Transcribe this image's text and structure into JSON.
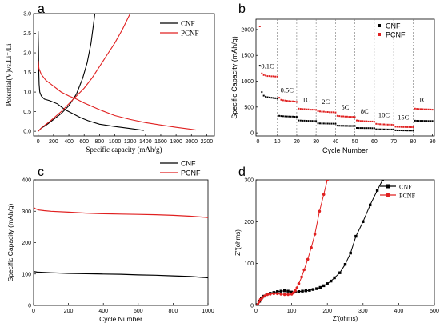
{
  "chart_data": [
    {
      "id": "a",
      "panel_label": "a",
      "type": "line",
      "xlabel": "Specific capacity  (mAh/g)",
      "ylabel": "Potential(V)vs.Li⁺/Li",
      "xlim": [
        -60,
        2300
      ],
      "ylim": [
        -0.12,
        3.0
      ],
      "xticks": [
        0,
        200,
        400,
        600,
        800,
        1000,
        1200,
        1400,
        1600,
        1800,
        2000,
        2200
      ],
      "yticks": [
        0.0,
        0.5,
        1.0,
        1.5,
        2.0,
        2.5,
        3.0
      ],
      "legend": [
        {
          "name": "CNF",
          "color": "#000000"
        },
        {
          "name": "PCNF",
          "color": "#e02020"
        }
      ],
      "series": [
        {
          "name": "CNF",
          "color": "#000000",
          "segment": "discharge",
          "points": [
            [
              0,
              2.55
            ],
            [
              5,
              2.0
            ],
            [
              8,
              1.5
            ],
            [
              12,
              1.2
            ],
            [
              20,
              1.0
            ],
            [
              40,
              0.9
            ],
            [
              80,
              0.82
            ],
            [
              150,
              0.78
            ],
            [
              250,
              0.7
            ],
            [
              350,
              0.55
            ],
            [
              450,
              0.45
            ],
            [
              550,
              0.35
            ],
            [
              650,
              0.27
            ],
            [
              800,
              0.18
            ],
            [
              1000,
              0.12
            ],
            [
              1200,
              0.07
            ],
            [
              1380,
              0.02
            ]
          ]
        },
        {
          "name": "CNF",
          "color": "#000000",
          "segment": "charge",
          "points": [
            [
              0,
              0.0
            ],
            [
              40,
              0.08
            ],
            [
              100,
              0.15
            ],
            [
              200,
              0.3
            ],
            [
              300,
              0.45
            ],
            [
              400,
              0.65
            ],
            [
              500,
              0.95
            ],
            [
              580,
              1.35
            ],
            [
              640,
              1.75
            ],
            [
              690,
              2.25
            ],
            [
              720,
              2.7
            ],
            [
              740,
              3.0
            ]
          ]
        },
        {
          "name": "PCNF",
          "color": "#e02020",
          "segment": "discharge",
          "points": [
            [
              0,
              1.8
            ],
            [
              10,
              1.6
            ],
            [
              40,
              1.45
            ],
            [
              100,
              1.3
            ],
            [
              200,
              1.15
            ],
            [
              300,
              1.0
            ],
            [
              400,
              0.9
            ],
            [
              500,
              0.82
            ],
            [
              600,
              0.72
            ],
            [
              800,
              0.55
            ],
            [
              1000,
              0.4
            ],
            [
              1200,
              0.3
            ],
            [
              1400,
              0.22
            ],
            [
              1600,
              0.16
            ],
            [
              1800,
              0.1
            ],
            [
              2000,
              0.05
            ],
            [
              2060,
              0.03
            ]
          ]
        },
        {
          "name": "PCNF",
          "color": "#e02020",
          "segment": "charge",
          "points": [
            [
              0,
              0.0
            ],
            [
              50,
              0.1
            ],
            [
              150,
              0.25
            ],
            [
              300,
              0.5
            ],
            [
              450,
              0.8
            ],
            [
              600,
              1.1
            ],
            [
              700,
              1.35
            ],
            [
              800,
              1.65
            ],
            [
              900,
              1.95
            ],
            [
              1000,
              2.25
            ],
            [
              1100,
              2.6
            ],
            [
              1200,
              3.0
            ]
          ]
        }
      ]
    },
    {
      "id": "b",
      "panel_label": "b",
      "type": "scatter",
      "xlabel": "Cycle Number",
      "ylabel": "Specific Capacity  (mAh/g)",
      "xlim": [
        -1,
        91
      ],
      "ylim": [
        -60,
        2200
      ],
      "xticks": [
        0,
        10,
        20,
        30,
        40,
        50,
        60,
        70,
        80,
        90
      ],
      "yticks": [
        0,
        500,
        1000,
        1500,
        2000
      ],
      "legend": [
        {
          "name": "CNF",
          "color": "#000000"
        },
        {
          "name": "PCNF",
          "color": "#e02020"
        }
      ],
      "rate_labels": [
        {
          "text": "0.1C",
          "x": 5,
          "y": 1250
        },
        {
          "text": "0.5C",
          "x": 15,
          "y": 780
        },
        {
          "text": "1C",
          "x": 25,
          "y": 600
        },
        {
          "text": "2C",
          "x": 35,
          "y": 560
        },
        {
          "text": "5C",
          "x": 45,
          "y": 450
        },
        {
          "text": "8C",
          "x": 55,
          "y": 370
        },
        {
          "text": "10C",
          "x": 65,
          "y": 300
        },
        {
          "text": "15C",
          "x": 75,
          "y": 260
        },
        {
          "text": "1C",
          "x": 85,
          "y": 600
        }
      ],
      "separators": [
        10,
        20,
        30,
        40,
        50,
        60,
        70,
        80
      ],
      "series": [
        {
          "name": "PCNF",
          "color": "#e02020",
          "values": [
            2060,
            1150,
            1120,
            1110,
            1100,
            1100,
            1095,
            1095,
            1090,
            1090,
            680,
            640,
            630,
            625,
            620,
            615,
            610,
            610,
            605,
            600,
            470,
            465,
            460,
            460,
            455,
            455,
            450,
            450,
            450,
            445,
            420,
            415,
            410,
            410,
            405,
            405,
            400,
            400,
            400,
            395,
            330,
            325,
            320,
            320,
            315,
            315,
            310,
            310,
            310,
            305,
            240,
            235,
            230,
            230,
            225,
            225,
            220,
            220,
            220,
            215,
            175,
            170,
            168,
            165,
            165,
            162,
            160,
            160,
            158,
            155,
            120,
            118,
            116,
            115,
            114,
            113,
            112,
            112,
            111,
            110,
            470,
            465,
            462,
            460,
            458,
            456,
            455,
            454,
            452,
            450
          ]
        },
        {
          "name": "CNF",
          "color": "#000000",
          "values": [
            1300,
            790,
            720,
            700,
            690,
            685,
            680,
            675,
            670,
            665,
            330,
            325,
            322,
            320,
            318,
            316,
            315,
            314,
            312,
            310,
            240,
            238,
            236,
            235,
            234,
            233,
            232,
            231,
            230,
            230,
            185,
            183,
            182,
            181,
            180,
            180,
            179,
            178,
            178,
            177,
            140,
            138,
            137,
            136,
            135,
            135,
            134,
            134,
            133,
            133,
            95,
            94,
            93,
            93,
            92,
            92,
            91,
            91,
            90,
            90,
            70,
            69,
            68,
            68,
            67,
            67,
            66,
            66,
            66,
            65,
            50,
            49,
            48,
            48,
            47,
            47,
            46,
            46,
            46,
            45,
            235,
            234,
            233,
            232,
            232,
            231,
            231,
            230,
            230,
            230
          ]
        }
      ]
    },
    {
      "id": "c",
      "panel_label": "c",
      "type": "line",
      "xlabel": "Cycle Number",
      "ylabel": "Specific Capacity  (mAh/g)",
      "xlim": [
        0,
        1000
      ],
      "ylim": [
        0,
        400
      ],
      "xticks": [
        0,
        200,
        400,
        600,
        800,
        1000
      ],
      "yticks": [
        0,
        100,
        200,
        300,
        400
      ],
      "legend": [
        {
          "name": "CNF",
          "color": "#000000"
        },
        {
          "name": "PCNF",
          "color": "#e02020"
        }
      ],
      "series": [
        {
          "name": "CNF",
          "color": "#000000",
          "points": [
            [
              0,
              108
            ],
            [
              20,
              106
            ],
            [
              100,
              104
            ],
            [
              200,
              102
            ],
            [
              300,
              101
            ],
            [
              400,
              100
            ],
            [
              500,
              99
            ],
            [
              600,
              97
            ],
            [
              700,
              96
            ],
            [
              800,
              94
            ],
            [
              900,
              92
            ],
            [
              1000,
              88
            ]
          ]
        },
        {
          "name": "PCNF",
          "color": "#e02020",
          "points": [
            [
              0,
              312
            ],
            [
              10,
              308
            ],
            [
              30,
              304
            ],
            [
              60,
              302
            ],
            [
              100,
              300
            ],
            [
              200,
              297
            ],
            [
              300,
              294
            ],
            [
              400,
              292
            ],
            [
              500,
              291
            ],
            [
              600,
              290
            ],
            [
              700,
              289
            ],
            [
              800,
              287
            ],
            [
              900,
              284
            ],
            [
              1000,
              280
            ]
          ]
        }
      ]
    },
    {
      "id": "d",
      "panel_label": "d",
      "type": "line",
      "xlabel": "Z'(ohms)",
      "ylabel": "Z''(ohms)",
      "xlim": [
        0,
        500
      ],
      "ylim": [
        0,
        300
      ],
      "xticks": [
        0,
        100,
        200,
        300,
        400,
        500
      ],
      "yticks": [
        0,
        100,
        200,
        300
      ],
      "legend": [
        {
          "name": "CNF",
          "color": "#000000",
          "marker": "square"
        },
        {
          "name": "PCNF",
          "color": "#e02020",
          "marker": "circle"
        }
      ],
      "series": [
        {
          "name": "CNF",
          "color": "#000000",
          "marker": "square",
          "points": [
            [
              5,
              2
            ],
            [
              10,
              10
            ],
            [
              15,
              17
            ],
            [
              22,
              22
            ],
            [
              30,
              26
            ],
            [
              40,
              29
            ],
            [
              50,
              31
            ],
            [
              60,
              33
            ],
            [
              70,
              34
            ],
            [
              80,
              35
            ],
            [
              90,
              34
            ],
            [
              100,
              32
            ],
            [
              110,
              32
            ],
            [
              120,
              33
            ],
            [
              130,
              34
            ],
            [
              140,
              35
            ],
            [
              150,
              36
            ],
            [
              160,
              38
            ],
            [
              170,
              40
            ],
            [
              180,
              43
            ],
            [
              190,
              47
            ],
            [
              200,
              52
            ],
            [
              210,
              58
            ],
            [
              220,
              66
            ],
            [
              235,
              78
            ],
            [
              250,
              98
            ],
            [
              265,
              125
            ],
            [
              280,
              165
            ],
            [
              300,
              200
            ],
            [
              320,
              240
            ],
            [
              340,
              275
            ],
            [
              355,
              300
            ]
          ]
        },
        {
          "name": "PCNF",
          "color": "#e02020",
          "marker": "circle",
          "points": [
            [
              5,
              2
            ],
            [
              8,
              8
            ],
            [
              12,
              14
            ],
            [
              18,
              19
            ],
            [
              25,
              23
            ],
            [
              32,
              26
            ],
            [
              40,
              27
            ],
            [
              50,
              28
            ],
            [
              60,
              28
            ],
            [
              70,
              27
            ],
            [
              80,
              26
            ],
            [
              90,
              26
            ],
            [
              100,
              27
            ],
            [
              105,
              30
            ],
            [
              110,
              35
            ],
            [
              115,
              42
            ],
            [
              120,
              52
            ],
            [
              128,
              68
            ],
            [
              135,
              85
            ],
            [
              145,
              110
            ],
            [
              155,
              138
            ],
            [
              165,
              170
            ],
            [
              178,
              225
            ],
            [
              190,
              265
            ],
            [
              200,
              300
            ]
          ]
        }
      ]
    }
  ]
}
